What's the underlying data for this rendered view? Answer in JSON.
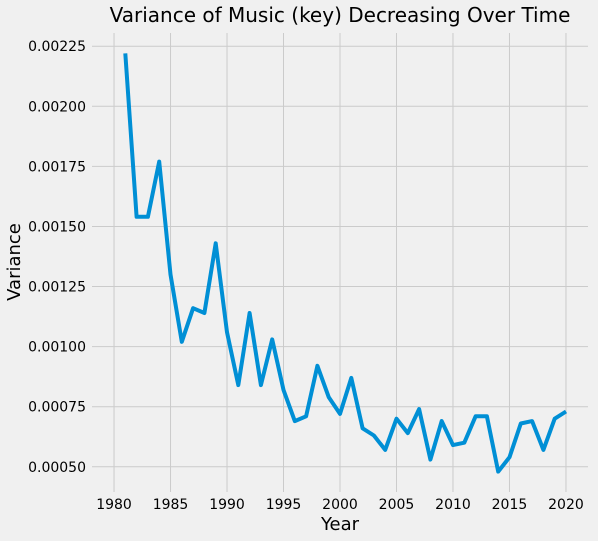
{
  "chart_data": {
    "type": "line",
    "title": "Variance of Music (key) Decreasing Over Time",
    "xlabel": "Year",
    "ylabel": "Variance",
    "xlim": [
      1978.05,
      2021.95
    ],
    "ylim": [
      0.000395,
      0.002305
    ],
    "x_ticks": [
      1980,
      1985,
      1990,
      1995,
      2000,
      2005,
      2010,
      2015,
      2020
    ],
    "x_tick_labels": [
      "1980",
      "1985",
      "1990",
      "1995",
      "2000",
      "2005",
      "2010",
      "2015",
      "2020"
    ],
    "y_ticks": [
      0.0005,
      0.00075,
      0.001,
      0.00125,
      0.0015,
      0.00175,
      0.002,
      0.00225
    ],
    "y_tick_labels": [
      "0.00050",
      "0.00075",
      "0.00100",
      "0.00125",
      "0.00150",
      "0.00175",
      "0.00200",
      "0.00225"
    ],
    "grid": true,
    "colors": {
      "series": "#008fd5",
      "grid": "#cbcbcb",
      "background": "#f0f0f0"
    },
    "series": [
      {
        "x": [
          1981,
          1982,
          1983,
          1984,
          1985,
          1986,
          1987,
          1988,
          1989,
          1990,
          1991,
          1992,
          1993,
          1994,
          1995,
          1996,
          1997,
          1998,
          1999,
          2000,
          2001,
          2002,
          2003,
          2004,
          2005,
          2006,
          2007,
          2008,
          2009,
          2010,
          2011,
          2012,
          2013,
          2014,
          2015,
          2016,
          2017,
          2018,
          2019,
          2020
        ],
        "values": [
          0.00222,
          0.00154,
          0.00154,
          0.00177,
          0.0013,
          0.00102,
          0.00116,
          0.00114,
          0.00143,
          0.00106,
          0.00084,
          0.00114,
          0.00084,
          0.00103,
          0.00082,
          0.00069,
          0.00071,
          0.00092,
          0.00079,
          0.00072,
          0.00087,
          0.00066,
          0.00063,
          0.00057,
          0.0007,
          0.00064,
          0.00074,
          0.00053,
          0.00069,
          0.00059,
          0.0006,
          0.00071,
          0.00071,
          0.00048,
          0.00054,
          0.00068,
          0.00069,
          0.00057,
          0.0007,
          0.00073
        ]
      }
    ]
  }
}
